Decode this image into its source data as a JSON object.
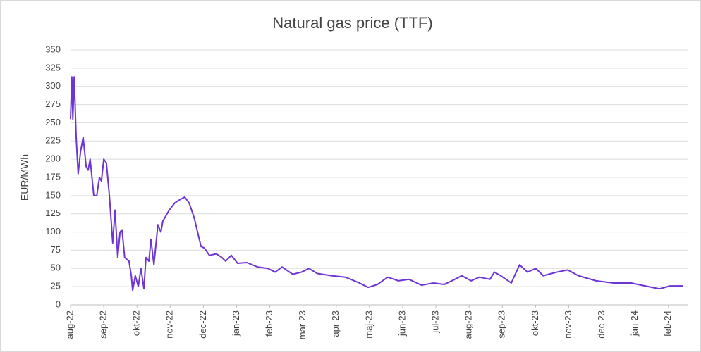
{
  "chart_data": {
    "type": "line",
    "title": "Natural gas price (TTF)",
    "y_label": "EUR/MWh",
    "x": [
      0,
      0.04,
      0.07,
      0.11,
      0.17,
      0.23,
      0.3,
      0.38,
      0.47,
      0.53,
      0.59,
      0.7,
      0.79,
      0.87,
      0.93,
      1.0,
      1.08,
      1.17,
      1.27,
      1.34,
      1.42,
      1.49,
      1.55,
      1.63,
      1.76,
      1.83,
      1.87,
      1.95,
      2.04,
      2.12,
      2.21,
      2.27,
      2.36,
      2.42,
      2.51,
      2.63,
      2.72,
      2.78,
      2.97,
      3.14,
      3.31,
      3.44,
      3.57,
      3.72,
      3.93,
      4.03,
      4.18,
      4.39,
      4.56,
      4.67,
      4.84,
      5.03,
      5.31,
      5.63,
      5.94,
      6.16,
      6.37,
      6.69,
      6.96,
      7.18,
      7.43,
      7.86,
      8.28,
      8.7,
      8.96,
      9.24,
      9.55,
      9.87,
      10.19,
      10.57,
      10.93,
      11.25,
      11.57,
      11.78,
      12.06,
      12.31,
      12.63,
      12.76,
      12.95,
      13.27,
      13.52,
      13.76,
      14.01,
      14.23,
      14.65,
      14.97,
      15.29,
      15.82,
      16.35,
      16.88,
      17.3,
      17.73,
      18.05,
      18.43
    ],
    "series": [
      {
        "name": "TTF",
        "color": "#6c35d4",
        "values": [
          255,
          313,
          255,
          313,
          230,
          180,
          210,
          230,
          190,
          185,
          200,
          150,
          150,
          175,
          170,
          200,
          195,
          150,
          85,
          130,
          65,
          100,
          103,
          65,
          60,
          40,
          20,
          40,
          25,
          50,
          22,
          65,
          60,
          90,
          55,
          110,
          100,
          115,
          130,
          140,
          145,
          148,
          140,
          120,
          80,
          78,
          68,
          70,
          65,
          60,
          68,
          57,
          58,
          52,
          50,
          45,
          52,
          42,
          45,
          50,
          43,
          40,
          38,
          30,
          24,
          28,
          38,
          33,
          35,
          27,
          30,
          28,
          35,
          40,
          33,
          38,
          35,
          45,
          40,
          30,
          55,
          45,
          50,
          40,
          45,
          48,
          40,
          33,
          30,
          30,
          26,
          22,
          26,
          26
        ]
      }
    ],
    "xlim": [
      0,
      18.6
    ],
    "xticks": [
      {
        "value": 0,
        "label": "aug-22"
      },
      {
        "value": 1,
        "label": "sep-22"
      },
      {
        "value": 2,
        "label": "okt-22"
      },
      {
        "value": 3,
        "label": "nov-22"
      },
      {
        "value": 4,
        "label": "dec-22"
      },
      {
        "value": 5,
        "label": "jan-23"
      },
      {
        "value": 6,
        "label": "feb-23"
      },
      {
        "value": 7,
        "label": "mar-23"
      },
      {
        "value": 8,
        "label": "apr-23"
      },
      {
        "value": 9,
        "label": "maj-23"
      },
      {
        "value": 10,
        "label": "jun-23"
      },
      {
        "value": 11,
        "label": "jul-23"
      },
      {
        "value": 12,
        "label": "aug-23"
      },
      {
        "value": 13,
        "label": "sep-23"
      },
      {
        "value": 14,
        "label": "okt-23"
      },
      {
        "value": 15,
        "label": "nov-23"
      },
      {
        "value": 16,
        "label": "dec-23"
      },
      {
        "value": 17,
        "label": "jan-24"
      },
      {
        "value": 18,
        "label": "feb-24"
      }
    ],
    "ylim": [
      0,
      350
    ],
    "yticks": [
      0,
      25,
      50,
      75,
      100,
      125,
      150,
      175,
      200,
      225,
      250,
      275,
      300,
      325,
      350
    ],
    "grid": true
  }
}
